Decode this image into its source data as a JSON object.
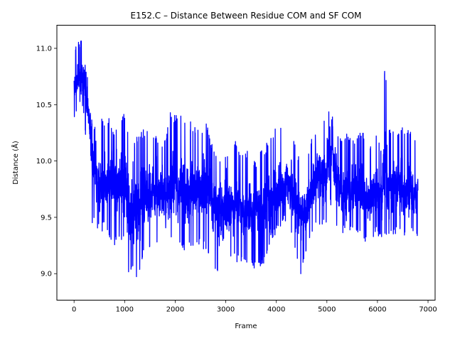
{
  "chart_data": {
    "type": "line",
    "title": "E152.C – Distance Between Residue COM and SF COM",
    "xlabel": "Frame",
    "ylabel": "Distance (Å)",
    "xlim": [
      -340,
      7140
    ],
    "ylim": [
      8.765,
      11.205
    ],
    "xticks": [
      0,
      1000,
      2000,
      3000,
      4000,
      5000,
      6000,
      7000
    ],
    "xtick_labels": [
      "0",
      "1000",
      "2000",
      "3000",
      "4000",
      "5000",
      "6000",
      "7000"
    ],
    "yticks": [
      9.0,
      9.5,
      10.0,
      10.5,
      11.0
    ],
    "ytick_labels": [
      "9.0",
      "9.5",
      "10.0",
      "10.5",
      "11.0"
    ],
    "grid": false,
    "legend": "none",
    "series": [
      {
        "color": "#0000ff",
        "n_frames": 6800,
        "x": [
          0,
          50,
          100,
          150,
          200,
          250,
          300,
          350,
          400,
          500,
          600,
          700,
          800,
          900,
          1000,
          1100,
          1150,
          1200,
          1300,
          1400,
          1500,
          1600,
          1700,
          1800,
          1900,
          2000,
          2100,
          2200,
          2300,
          2400,
          2500,
          2600,
          2700,
          2800,
          2900,
          3000,
          3100,
          3200,
          3300,
          3400,
          3500,
          3600,
          3700,
          3800,
          3900,
          4000,
          4100,
          4200,
          4300,
          4400,
          4500,
          4600,
          4700,
          4800,
          4900,
          5000,
          5050,
          5100,
          5150,
          5200,
          5300,
          5400,
          5500,
          5600,
          5700,
          5800,
          5900,
          6000,
          6100,
          6150,
          6200,
          6250,
          6300,
          6400,
          6500,
          6600,
          6700,
          6800
        ],
        "center": [
          10.65,
          10.7,
          10.75,
          10.72,
          10.7,
          10.55,
          10.35,
          10.1,
          9.95,
          9.8,
          9.8,
          9.85,
          9.8,
          9.75,
          9.8,
          9.6,
          9.5,
          9.55,
          9.6,
          9.65,
          9.7,
          9.7,
          9.75,
          9.7,
          9.75,
          9.8,
          9.75,
          9.7,
          9.7,
          9.7,
          9.75,
          9.8,
          9.65,
          9.55,
          9.55,
          9.6,
          9.6,
          9.6,
          9.6,
          9.55,
          9.55,
          9.6,
          9.55,
          9.6,
          9.65,
          9.65,
          9.7,
          9.8,
          9.75,
          9.6,
          9.5,
          9.6,
          9.75,
          9.85,
          9.85,
          9.9,
          10.0,
          10.2,
          9.95,
          9.8,
          9.7,
          9.7,
          9.75,
          9.75,
          9.7,
          9.65,
          9.7,
          9.75,
          9.75,
          10.0,
          9.75,
          9.75,
          9.8,
          9.8,
          9.75,
          9.7,
          9.75,
          9.7
        ],
        "lo": [
          10.35,
          10.4,
          10.45,
          10.5,
          10.4,
          10.05,
          9.95,
          9.45,
          9.45,
          9.35,
          9.4,
          9.3,
          9.25,
          9.3,
          9.25,
          8.92,
          9.05,
          8.88,
          9.0,
          9.2,
          9.2,
          9.3,
          9.25,
          9.3,
          9.3,
          9.35,
          9.25,
          9.2,
          9.25,
          9.25,
          9.25,
          9.2,
          9.1,
          9.0,
          8.96,
          9.1,
          9.15,
          9.1,
          9.1,
          9.05,
          9.05,
          9.05,
          9.05,
          9.1,
          9.3,
          9.35,
          9.4,
          9.45,
          9.35,
          9.1,
          8.96,
          9.2,
          9.35,
          9.4,
          9.4,
          9.45,
          9.55,
          9.65,
          9.5,
          9.4,
          9.35,
          9.35,
          9.4,
          9.35,
          9.3,
          9.25,
          9.3,
          9.35,
          9.25,
          9.3,
          9.3,
          9.3,
          9.35,
          9.35,
          9.3,
          9.3,
          9.35,
          9.3
        ],
        "hi": [
          11.05,
          11.07,
          11.07,
          11.09,
          10.95,
          10.85,
          10.6,
          10.55,
          10.35,
          10.4,
          10.35,
          10.38,
          10.3,
          10.3,
          10.45,
          10.2,
          10.0,
          10.2,
          10.25,
          10.3,
          10.22,
          10.25,
          10.15,
          10.2,
          10.45,
          10.4,
          10.45,
          10.4,
          10.35,
          10.3,
          10.25,
          10.4,
          10.2,
          10.1,
          10.0,
          10.1,
          10.05,
          10.2,
          10.1,
          10.1,
          10.05,
          10.0,
          10.1,
          10.15,
          10.25,
          10.3,
          10.35,
          10.45,
          10.35,
          10.1,
          10.0,
          10.1,
          10.2,
          10.3,
          10.35,
          10.4,
          10.55,
          10.7,
          10.5,
          10.3,
          10.2,
          10.25,
          10.2,
          10.25,
          10.3,
          10.05,
          10.2,
          10.3,
          10.0,
          11.03,
          10.3,
          10.28,
          10.3,
          10.25,
          10.3,
          10.28,
          10.3,
          10.05
        ]
      }
    ]
  }
}
